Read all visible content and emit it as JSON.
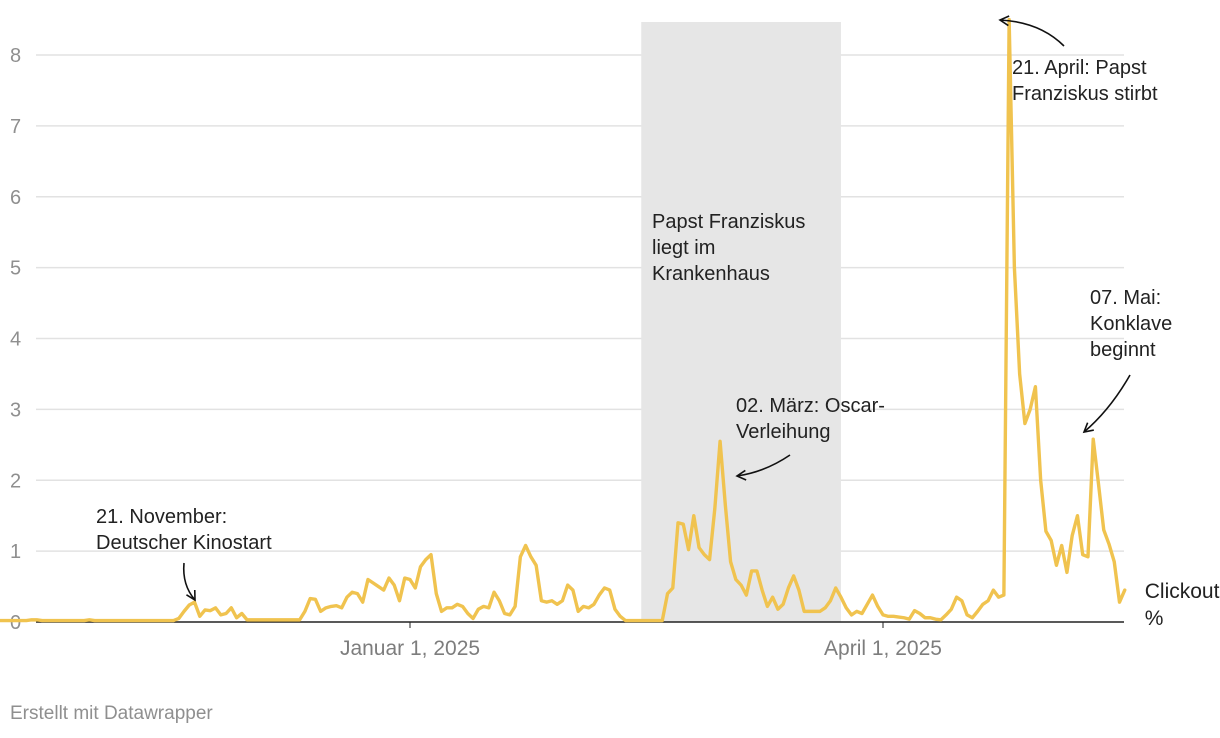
{
  "chart_data": {
    "type": "line",
    "title": "",
    "xlabel": "",
    "ylabel": "",
    "ylim": [
      0,
      8.5
    ],
    "y_ticks": [
      "0",
      "1",
      "2",
      "3",
      "4",
      "5",
      "6",
      "7",
      "8"
    ],
    "x_ticks": [
      {
        "label": "Januar 1, 2025",
        "date": "2025-01-01"
      },
      {
        "label": "April 1, 2025",
        "date": "2025-04-01"
      }
    ],
    "grid": "horizontal",
    "series": [
      {
        "label_lines": [
          "Clickout",
          "%"
        ],
        "color": "#f0c34f",
        "start_date": "2024-10-15",
        "values": [
          0.02,
          0.02,
          0.02,
          0.02,
          0.02,
          0.02,
          0.03,
          0.03,
          0.02,
          0.02,
          0.02,
          0.02,
          0.02,
          0.02,
          0.02,
          0.02,
          0.02,
          0.03,
          0.02,
          0.02,
          0.02,
          0.02,
          0.02,
          0.02,
          0.02,
          0.02,
          0.02,
          0.02,
          0.02,
          0.02,
          0.02,
          0.02,
          0.02,
          0.02,
          0.05,
          0.15,
          0.24,
          0.28,
          0.08,
          0.17,
          0.16,
          0.2,
          0.1,
          0.12,
          0.2,
          0.06,
          0.12,
          0.03,
          0.03,
          0.03,
          0.03,
          0.03,
          0.03,
          0.03,
          0.03,
          0.03,
          0.03,
          0.03,
          0.15,
          0.33,
          0.32,
          0.15,
          0.2,
          0.22,
          0.23,
          0.2,
          0.35,
          0.42,
          0.4,
          0.28,
          0.6,
          0.55,
          0.5,
          0.45,
          0.62,
          0.52,
          0.3,
          0.62,
          0.6,
          0.48,
          0.78,
          0.88,
          0.95,
          0.4,
          0.15,
          0.2,
          0.2,
          0.25,
          0.22,
          0.12,
          0.05,
          0.18,
          0.22,
          0.2,
          0.42,
          0.3,
          0.12,
          0.1,
          0.22,
          0.92,
          1.08,
          0.92,
          0.8,
          0.3,
          0.28,
          0.3,
          0.25,
          0.3,
          0.52,
          0.45,
          0.15,
          0.22,
          0.2,
          0.25,
          0.38,
          0.48,
          0.45,
          0.18,
          0.08,
          0.02,
          0.02,
          0.02,
          0.02,
          0.02,
          0.02,
          0.02,
          0.02,
          0.4,
          0.48,
          1.4,
          1.38,
          1.02,
          1.5,
          1.05,
          0.95,
          0.88,
          1.6,
          2.55,
          1.65,
          0.85,
          0.6,
          0.52,
          0.38,
          0.72,
          0.72,
          0.45,
          0.22,
          0.35,
          0.18,
          0.25,
          0.48,
          0.65,
          0.45,
          0.15,
          0.15,
          0.15,
          0.15,
          0.2,
          0.3,
          0.48,
          0.35,
          0.2,
          0.1,
          0.15,
          0.12,
          0.25,
          0.38,
          0.22,
          0.1,
          0.08,
          0.08,
          0.07,
          0.06,
          0.04,
          0.16,
          0.12,
          0.06,
          0.06,
          0.04,
          0.03,
          0.1,
          0.18,
          0.35,
          0.3,
          0.1,
          0.06,
          0.15,
          0.25,
          0.3,
          0.45,
          0.35,
          0.38,
          8.5,
          5.0,
          3.5,
          2.8,
          3.0,
          3.32,
          2.0,
          1.28,
          1.15,
          0.8,
          1.08,
          0.7,
          1.22,
          1.5,
          0.95,
          0.92,
          2.58,
          1.95,
          1.3,
          1.1,
          0.85,
          0.28,
          0.45
        ]
      }
    ],
    "highlight_range": {
      "start": "2025-02-14",
      "end": "2025-03-24",
      "label_lines": [
        "Papst Franziskus",
        "liegt im",
        "Krankenhaus"
      ]
    },
    "annotations": [
      {
        "lines": [
          "21. November:",
          "Deutscher Kinostart"
        ],
        "date": "2024-11-21"
      },
      {
        "lines": [
          "02. März: Oscar-",
          "Verleihung"
        ],
        "date": "2025-03-02"
      },
      {
        "lines": [
          "21. April: Papst",
          "Franziskus stirbt"
        ],
        "date": "2025-04-21"
      },
      {
        "lines": [
          "07. Mai:",
          "Konklave",
          "beginnt"
        ],
        "date": "2025-05-07"
      }
    ]
  },
  "footer": {
    "credit": "Erstellt mit Datawrapper"
  }
}
